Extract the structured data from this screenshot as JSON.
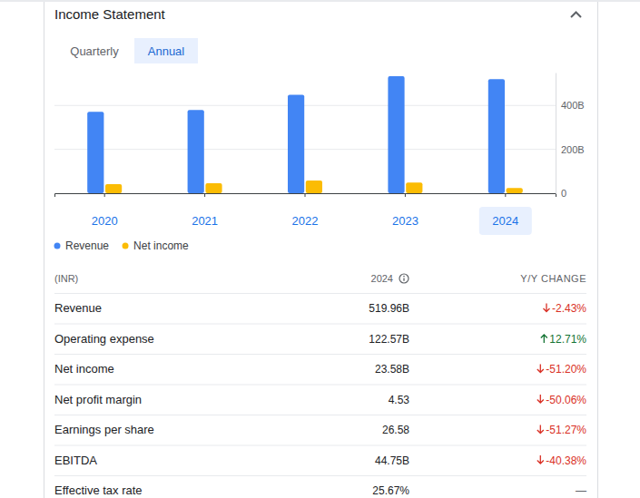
{
  "header": {
    "title": "Income Statement"
  },
  "tabs": {
    "items": [
      "Quarterly",
      "Annual"
    ],
    "selected": 1
  },
  "chart_data": {
    "type": "bar",
    "categories": [
      "2020",
      "2021",
      "2022",
      "2023",
      "2024"
    ],
    "series": [
      {
        "name": "Revenue",
        "color": "#4285f4",
        "values": [
          371,
          379,
          449,
          533,
          519.96
        ]
      },
      {
        "name": "Net income",
        "color": "#fbbc04",
        "values": [
          41,
          45,
          58,
          48.3,
          23.58
        ]
      }
    ],
    "ylim": [
      0,
      550
    ],
    "yticks": [
      0,
      {
        "value": 200,
        "label": "200B"
      },
      {
        "value": 400,
        "label": "400B"
      }
    ],
    "grid": true,
    "legend": "bottom-left"
  },
  "table": {
    "columns": [
      "(INR)",
      "2024",
      "Y/Y CHANGE"
    ],
    "rows": [
      [
        "Revenue",
        "519.96B",
        "-2.43%"
      ],
      [
        "Operating expense",
        "122.57B",
        "12.71%"
      ],
      [
        "Net income",
        "23.58B",
        "-51.20%"
      ],
      [
        "Net profit margin",
        "4.53",
        "-50.06%"
      ],
      [
        "Earnings per share",
        "26.58",
        "-51.27%"
      ],
      [
        "EBITDA",
        "44.75B",
        "-40.38%"
      ],
      [
        "Effective tax rate",
        "25.67%",
        "—"
      ]
    ]
  }
}
